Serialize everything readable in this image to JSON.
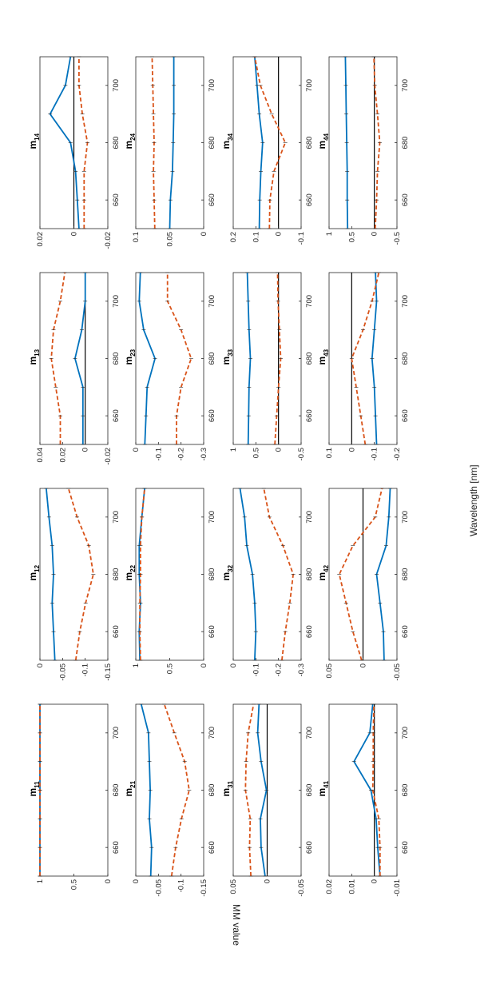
{
  "figure": {
    "xlabel": "Wavelength [nm]",
    "ylabel": "MM value"
  },
  "colors": {
    "series_1": "#0072BD",
    "series_2": "#D95319",
    "zero_line": "#000000"
  },
  "chart_data": [
    {
      "type": "line",
      "title_main": "m",
      "title_sub": "11",
      "x": [
        650,
        660,
        670,
        680,
        690,
        700,
        710
      ],
      "xlim": [
        650,
        710
      ],
      "xticks": [
        660,
        680,
        700
      ],
      "ylim": [
        0,
        1
      ],
      "yticks": [
        0,
        0.5,
        1
      ],
      "ytick_labels": [
        "0",
        "0.5",
        "1"
      ],
      "zero_line": false,
      "series": [
        {
          "values": [
            1,
            1,
            1,
            1,
            1,
            1,
            1
          ]
        },
        {
          "values": [
            1,
            1,
            1,
            1,
            1,
            1,
            1
          ]
        }
      ]
    },
    {
      "type": "line",
      "title_main": "m",
      "title_sub": "12",
      "x": [
        650,
        660,
        670,
        680,
        690,
        700,
        710
      ],
      "xlim": [
        650,
        710
      ],
      "xticks": [
        660,
        680,
        700
      ],
      "ylim": [
        -0.15,
        0
      ],
      "yticks": [
        0,
        -0.05,
        -0.1,
        -0.15
      ],
      "ytick_labels": [
        "0",
        "-0.05",
        "-0.1",
        "-0.15"
      ],
      "zero_line": false,
      "series": [
        {
          "values": [
            -0.033,
            -0.03,
            -0.027,
            -0.03,
            -0.027,
            -0.02,
            -0.014
          ]
        },
        {
          "values": [
            -0.079,
            -0.088,
            -0.101,
            -0.118,
            -0.108,
            -0.082,
            -0.063
          ]
        }
      ]
    },
    {
      "type": "line",
      "title_main": "m",
      "title_sub": "13",
      "x": [
        650,
        660,
        670,
        680,
        690,
        700,
        710
      ],
      "xlim": [
        650,
        710
      ],
      "xticks": [
        660,
        680,
        700
      ],
      "ylim": [
        -0.02,
        0.04
      ],
      "yticks": [
        0.04,
        0.02,
        0,
        -0.02
      ],
      "ytick_labels": [
        "0.04",
        "0.02",
        "0",
        "-0.02"
      ],
      "zero_line": true,
      "series": [
        {
          "values": [
            0.002,
            0.002,
            0.002,
            0.009,
            0.003,
            0,
            0
          ]
        },
        {
          "values": [
            0.022,
            0.022,
            0.026,
            0.03,
            0.028,
            0.022,
            0.018
          ]
        }
      ]
    },
    {
      "type": "line",
      "title_main": "m",
      "title_sub": "14",
      "x": [
        650,
        660,
        670,
        680,
        690,
        700,
        710
      ],
      "xlim": [
        650,
        710
      ],
      "xticks": [
        660,
        680,
        700
      ],
      "ylim": [
        -0.02,
        0.02
      ],
      "yticks": [
        0.02,
        0,
        -0.02
      ],
      "ytick_labels": [
        "0.02",
        "0",
        "-0.02"
      ],
      "zero_line": true,
      "series": [
        {
          "values": [
            -0.003,
            -0.002,
            -0.001,
            0.002,
            0.014,
            0.005,
            0.002
          ]
        },
        {
          "values": [
            -0.006,
            -0.006,
            -0.006,
            -0.008,
            -0.005,
            -0.003,
            -0.003
          ]
        }
      ]
    },
    {
      "type": "line",
      "title_main": "m",
      "title_sub": "21",
      "x": [
        650,
        660,
        670,
        680,
        690,
        700,
        710
      ],
      "xlim": [
        650,
        710
      ],
      "xticks": [
        660,
        680,
        700
      ],
      "ylim": [
        -0.15,
        0
      ],
      "yticks": [
        0,
        -0.05,
        -0.1,
        -0.15
      ],
      "ytick_labels": [
        "0",
        "-0.05",
        "-0.1",
        "-0.15"
      ],
      "zero_line": false,
      "series": [
        {
          "values": [
            -0.033,
            -0.035,
            -0.03,
            -0.032,
            -0.03,
            -0.028,
            -0.012
          ]
        },
        {
          "values": [
            -0.079,
            -0.088,
            -0.101,
            -0.118,
            -0.108,
            -0.085,
            -0.063
          ]
        }
      ]
    },
    {
      "type": "line",
      "title_main": "m",
      "title_sub": "22",
      "x": [
        650,
        660,
        670,
        680,
        690,
        700,
        710
      ],
      "xlim": [
        650,
        710
      ],
      "xticks": [
        660,
        680,
        700
      ],
      "ylim": [
        0,
        1
      ],
      "yticks": [
        1,
        0.5,
        0
      ],
      "ytick_labels": [
        "1",
        "0.5",
        "0"
      ],
      "zero_line": false,
      "series": [
        {
          "values": [
            0.94,
            0.95,
            0.93,
            0.95,
            0.95,
            0.91,
            0.87
          ]
        },
        {
          "values": [
            0.93,
            0.94,
            0.94,
            0.93,
            0.93,
            0.91,
            0.87
          ]
        }
      ]
    },
    {
      "type": "line",
      "title_main": "m",
      "title_sub": "23",
      "x": [
        650,
        660,
        670,
        680,
        690,
        700,
        710
      ],
      "xlim": [
        650,
        710
      ],
      "xticks": [
        660,
        680,
        700
      ],
      "ylim": [
        -0.3,
        0
      ],
      "yticks": [
        0,
        -0.1,
        -0.2,
        -0.3
      ],
      "ytick_labels": [
        "0",
        "-0.1",
        "-0.2",
        "-0.3"
      ],
      "zero_line": false,
      "series": [
        {
          "values": [
            -0.04,
            -0.045,
            -0.05,
            -0.085,
            -0.035,
            -0.015,
            -0.02
          ]
        },
        {
          "values": [
            -0.18,
            -0.18,
            -0.2,
            -0.245,
            -0.2,
            -0.14,
            -0.14
          ]
        }
      ]
    },
    {
      "type": "line",
      "title_main": "m",
      "title_sub": "24",
      "x": [
        650,
        660,
        670,
        680,
        690,
        700,
        710
      ],
      "xlim": [
        650,
        710
      ],
      "xticks": [
        660,
        680,
        700
      ],
      "ylim": [
        0,
        0.1
      ],
      "yticks": [
        0.1,
        0.05,
        0
      ],
      "ytick_labels": [
        "0.1",
        "0.05",
        "0"
      ],
      "zero_line": false,
      "series": [
        {
          "values": [
            0.05,
            0.049,
            0.046,
            0.045,
            0.044,
            0.044,
            0.044
          ]
        },
        {
          "values": [
            0.072,
            0.073,
            0.074,
            0.073,
            0.074,
            0.075,
            0.076
          ]
        }
      ]
    },
    {
      "type": "line",
      "title_main": "m",
      "title_sub": "31",
      "x": [
        650,
        660,
        670,
        680,
        690,
        700,
        710
      ],
      "xlim": [
        650,
        710
      ],
      "xticks": [
        660,
        680,
        700
      ],
      "ylim": [
        -0.05,
        0.05
      ],
      "yticks": [
        0.05,
        0,
        -0.05
      ],
      "ytick_labels": [
        "0.05",
        "0",
        "-0.05"
      ],
      "zero_line": true,
      "series": [
        {
          "values": [
            0.003,
            0.009,
            0.01,
            0.001,
            0.009,
            0.014,
            0.012
          ]
        },
        {
          "values": [
            0.024,
            0.026,
            0.025,
            0.032,
            0.031,
            0.028,
            0.02
          ]
        }
      ]
    },
    {
      "type": "line",
      "title_main": "m",
      "title_sub": "32",
      "x": [
        650,
        660,
        670,
        680,
        690,
        700,
        710
      ],
      "xlim": [
        650,
        710
      ],
      "xticks": [
        660,
        680,
        700
      ],
      "ylim": [
        -0.3,
        0
      ],
      "yticks": [
        0,
        -0.1,
        -0.2,
        -0.3
      ],
      "ytick_labels": [
        "0",
        "-0.1",
        "-0.2",
        "-0.3"
      ],
      "zero_line": false,
      "series": [
        {
          "values": [
            -0.095,
            -0.1,
            -0.095,
            -0.085,
            -0.06,
            -0.05,
            -0.03
          ]
        },
        {
          "values": [
            -0.215,
            -0.23,
            -0.25,
            -0.265,
            -0.22,
            -0.16,
            -0.135
          ]
        }
      ]
    },
    {
      "type": "line",
      "title_main": "m",
      "title_sub": "33",
      "x": [
        650,
        660,
        670,
        680,
        690,
        700,
        710
      ],
      "xlim": [
        650,
        710
      ],
      "xticks": [
        660,
        680,
        700
      ],
      "ylim": [
        -0.5,
        1
      ],
      "yticks": [
        1,
        0.5,
        0,
        -0.5
      ],
      "ytick_labels": [
        "1",
        "0.5",
        "0",
        "-0.5"
      ],
      "zero_line": true,
      "series": [
        {
          "values": [
            0.67,
            0.66,
            0.65,
            0.62,
            0.65,
            0.67,
            0.69
          ]
        },
        {
          "values": [
            0.08,
            0.04,
            0,
            -0.05,
            -0.02,
            0.01,
            0.02
          ]
        }
      ]
    },
    {
      "type": "line",
      "title_main": "m",
      "title_sub": "34",
      "x": [
        650,
        660,
        670,
        680,
        690,
        700,
        710
      ],
      "xlim": [
        650,
        710
      ],
      "xticks": [
        660,
        680,
        700
      ],
      "ylim": [
        -0.1,
        0.2
      ],
      "yticks": [
        0.2,
        0.1,
        0,
        -0.1
      ],
      "ytick_labels": [
        "0.2",
        "0.1",
        "0",
        "-0.1"
      ],
      "zero_line": true,
      "series": [
        {
          "values": [
            0.085,
            0.083,
            0.078,
            0.07,
            0.085,
            0.095,
            0.105
          ]
        },
        {
          "values": [
            0.04,
            0.038,
            0.02,
            -0.03,
            0.03,
            0.08,
            0.105
          ]
        }
      ]
    },
    {
      "type": "line",
      "title_main": "m",
      "title_sub": "41",
      "x": [
        650,
        660,
        670,
        680,
        690,
        700,
        710
      ],
      "xlim": [
        650,
        710
      ],
      "xticks": [
        660,
        680,
        700
      ],
      "ylim": [
        -0.01,
        0.02
      ],
      "yticks": [
        0.02,
        0.01,
        0,
        -0.01
      ],
      "ytick_labels": [
        "0.02",
        "0.01",
        "0",
        "-0.01"
      ],
      "zero_line": true,
      "series": [
        {
          "values": [
            -0.0025,
            -0.0015,
            -0.0008,
            0.0015,
            0.009,
            0.002,
            0.0007
          ]
        },
        {
          "values": [
            -0.0025,
            -0.0025,
            -0.002,
            0.0007,
            0.0005,
            0.0005,
            0.0002
          ]
        }
      ]
    },
    {
      "type": "line",
      "title_main": "m",
      "title_sub": "42",
      "x": [
        650,
        660,
        670,
        680,
        690,
        700,
        710
      ],
      "xlim": [
        650,
        710
      ],
      "xticks": [
        660,
        680,
        700
      ],
      "ylim": [
        -0.05,
        0.05
      ],
      "yticks": [
        0.05,
        0,
        -0.05
      ],
      "ytick_labels": [
        "0.05",
        "0",
        "-0.05"
      ],
      "zero_line": true,
      "series": [
        {
          "values": [
            -0.031,
            -0.03,
            -0.025,
            -0.02,
            -0.034,
            -0.038,
            -0.04
          ]
        },
        {
          "values": [
            0.002,
            0.015,
            0.025,
            0.035,
            0.015,
            -0.018,
            -0.028
          ]
        }
      ]
    },
    {
      "type": "line",
      "title_main": "m",
      "title_sub": "43",
      "x": [
        650,
        660,
        670,
        680,
        690,
        700,
        710
      ],
      "xlim": [
        650,
        710
      ],
      "xticks": [
        660,
        680,
        700
      ],
      "ylim": [
        -0.2,
        0.1
      ],
      "yticks": [
        0.1,
        0,
        -0.1,
        -0.2
      ],
      "ytick_labels": [
        "0.1",
        "0",
        "-0.1",
        "-0.2"
      ],
      "zero_line": true,
      "series": [
        {
          "values": [
            -0.11,
            -0.105,
            -0.1,
            -0.09,
            -0.1,
            -0.11,
            -0.105
          ]
        },
        {
          "values": [
            -0.06,
            -0.04,
            -0.02,
            0,
            -0.05,
            -0.09,
            -0.12
          ]
        }
      ]
    },
    {
      "type": "line",
      "title_main": "m",
      "title_sub": "44",
      "x": [
        650,
        660,
        670,
        680,
        690,
        700,
        710
      ],
      "xlim": [
        650,
        710
      ],
      "xticks": [
        660,
        680,
        700
      ],
      "ylim": [
        -0.5,
        1
      ],
      "yticks": [
        1,
        0.5,
        0,
        -0.5
      ],
      "ytick_labels": [
        "1",
        "0.5",
        "0",
        "-0.5"
      ],
      "zero_line": true,
      "series": [
        {
          "values": [
            0.59,
            0.6,
            0.6,
            0.61,
            0.62,
            0.63,
            0.64
          ]
        },
        {
          "values": [
            -0.02,
            -0.05,
            -0.07,
            -0.12,
            -0.07,
            -0.01,
            0.01
          ]
        }
      ]
    }
  ]
}
